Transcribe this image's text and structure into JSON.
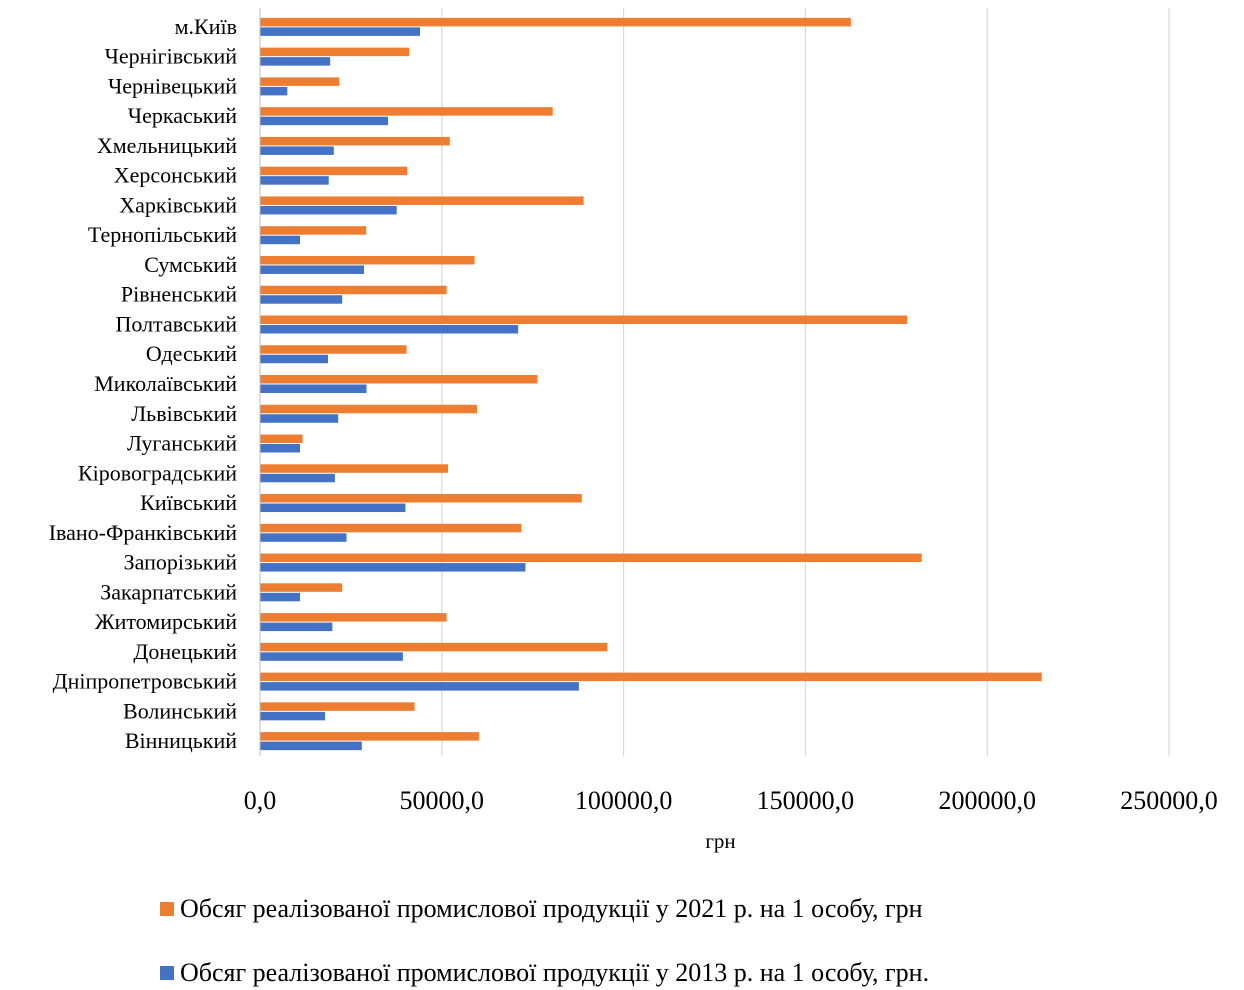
{
  "chart_data": {
    "type": "bar",
    "orientation": "horizontal",
    "categories": [
      "м.Київ",
      "Чернігівський",
      "Чернівецький",
      "Черкаський",
      "Хмельницький",
      "Херсонський",
      "Харківський",
      "Тернопільський",
      "Сумський",
      "Рівненський",
      "Полтавський",
      "Одеський",
      "Миколаївський",
      "Львівський",
      "Луганський",
      "Кіровоградський",
      "Київський",
      "Івано-Франківський",
      "Запорізький",
      "Закарпатський",
      "Житомирський",
      "Донецький",
      "Дніпропетровський",
      "Волинський",
      "Вінницький"
    ],
    "series": [
      {
        "name": "Обсяг реалізованої промислової продукції у 2021 р. на 1 особу, грн",
        "color": "#ED7D31",
        "values": [
          162500,
          41000,
          21800,
          80500,
          52200,
          40500,
          89000,
          29200,
          59000,
          51300,
          178000,
          40300,
          76300,
          59700,
          11700,
          51700,
          88500,
          71900,
          182000,
          22600,
          51300,
          95500,
          215000,
          42500,
          60200
        ]
      },
      {
        "name": "Обсяг реалізованої промислової продукції у 2013 р. на 1 особу, грн.",
        "color": "#4472C4",
        "values": [
          44000,
          19300,
          7500,
          35200,
          20300,
          18900,
          37600,
          11000,
          28600,
          22600,
          71000,
          18700,
          29300,
          21500,
          11000,
          20600,
          40000,
          23800,
          73000,
          11000,
          19900,
          39300,
          87700,
          17900,
          28000
        ]
      }
    ],
    "xlim": [
      0,
      250000
    ],
    "xticks": [
      0,
      50000,
      100000,
      150000,
      200000,
      250000
    ],
    "xtick_labels": [
      "0,0",
      "50000,0",
      "100000,0",
      "150000,0",
      "200000,0",
      "250000,0"
    ],
    "xlabel": "грн",
    "ylabel": "",
    "title": "",
    "grid": "vertical",
    "legend_position": "bottom"
  },
  "legend": {
    "items": [
      {
        "label": "Обсяг реалізованої промислової продукції у 2021 р. на 1 особу, грн",
        "color": "#ED7D31"
      },
      {
        "label": "Обсяг реалізованої промислової продукції у 2013 р. на 1 особу, грн.",
        "color": "#4472C4"
      }
    ]
  }
}
